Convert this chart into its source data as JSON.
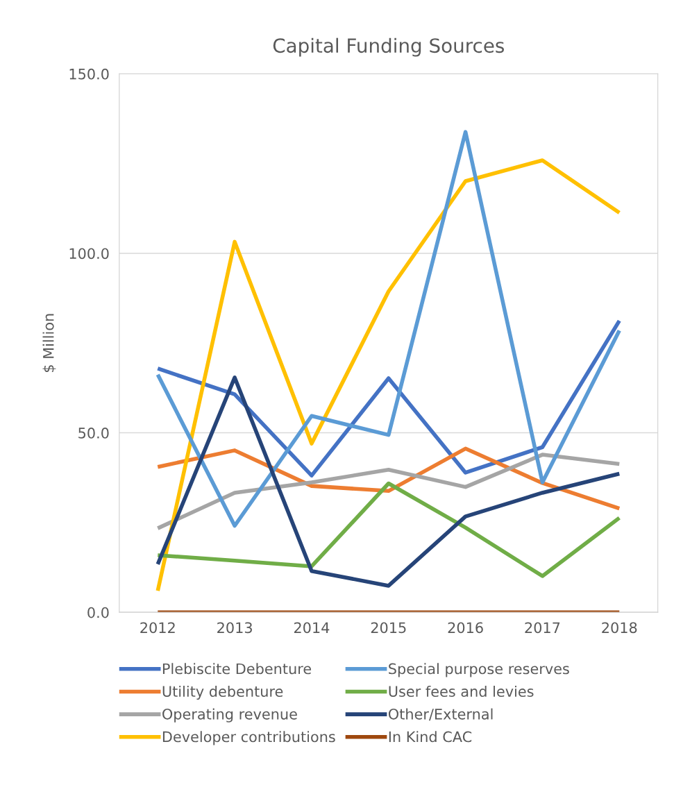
{
  "chart_data": {
    "type": "line",
    "title": "Capital Funding Sources",
    "ylabel": "$ Million",
    "categories": [
      "2012",
      "2013",
      "2014",
      "2015",
      "2016",
      "2017",
      "2018"
    ],
    "series": [
      {
        "name": "Plebiscite Debenture",
        "color": "#4472c4",
        "values": [
          67.9,
          60.7,
          38.1,
          65.2,
          38.9,
          46.0,
          81.2
        ]
      },
      {
        "name": "Utility debenture",
        "color": "#ed7d31",
        "values": [
          40.5,
          45.1,
          35.2,
          33.8,
          45.6,
          36.0,
          28.9
        ]
      },
      {
        "name": "Operating revenue",
        "color": "#a5a5a5",
        "values": [
          23.4,
          33.3,
          36.2,
          39.7,
          34.9,
          43.9,
          41.3
        ]
      },
      {
        "name": "Developer contributions",
        "color": "#ffc000",
        "values": [
          6.0,
          103.2,
          47.0,
          89.4,
          120.1,
          125.9,
          111.3
        ]
      },
      {
        "name": "Special purpose reserves",
        "color": "#5b9bd5",
        "values": [
          66.2,
          24.1,
          54.7,
          49.4,
          133.8,
          36.2,
          78.5
        ]
      },
      {
        "name": "User fees and levies",
        "color": "#70ad47",
        "values": [
          15.9,
          14.4,
          12.8,
          35.9,
          23.6,
          10.1,
          26.3
        ]
      },
      {
        "name": "Other/External",
        "color": "#264478",
        "values": [
          13.4,
          65.4,
          11.5,
          7.4,
          26.7,
          33.3,
          38.6
        ]
      },
      {
        "name": "In Kind CAC",
        "color": "#9e480e",
        "values": [
          0,
          0,
          0,
          0,
          0,
          0,
          0
        ]
      }
    ],
    "ylim": [
      0,
      150
    ],
    "yticks": [
      {
        "value": 0,
        "label": "0.0"
      },
      {
        "value": 50,
        "label": "50.0"
      },
      {
        "value": 100,
        "label": "100.0"
      },
      {
        "value": 150,
        "label": "150.0"
      }
    ],
    "grid": "y",
    "legend": "bottom",
    "marker": "none",
    "line_style": "solid"
  }
}
